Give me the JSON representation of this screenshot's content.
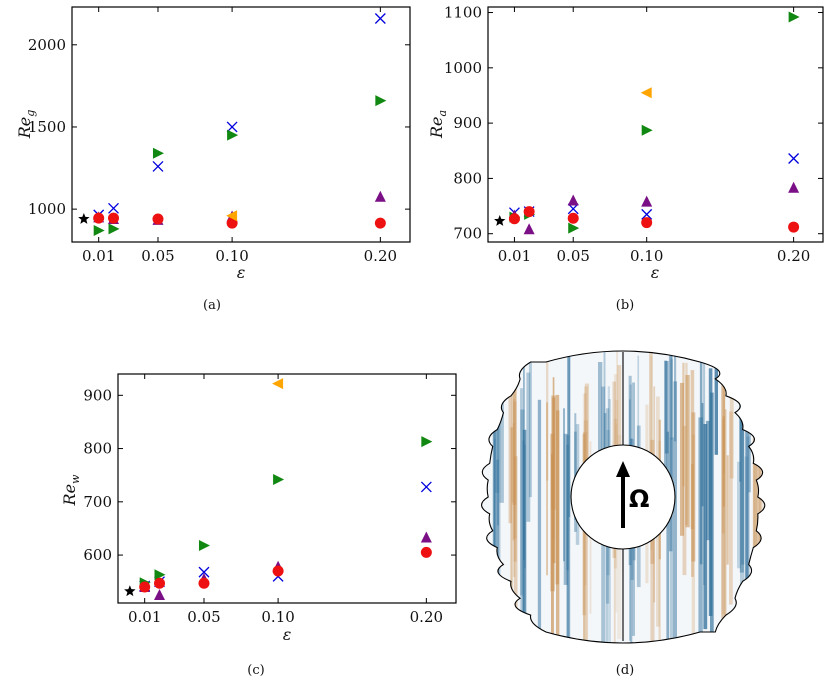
{
  "colors": {
    "star": "#000000",
    "cross": "#0000dd",
    "tri_right": "#118811",
    "tri_up": "#7a0f86",
    "circle": "#ee1111",
    "tri_left": "#ffa500",
    "blue_band": "#2f6f9a",
    "orange_band": "#c99152"
  },
  "chart_data": [
    {
      "id": "a",
      "type": "scatter",
      "caption": "(a)",
      "xlabel": "ε",
      "ylabel_base": "Re",
      "ylabel_sub": "g",
      "xlim": [
        -0.008,
        0.22
      ],
      "ylim": [
        800,
        2230
      ],
      "xticks": [
        {
          "value": 0.01,
          "label": "0.01"
        },
        {
          "value": 0.05,
          "label": "0.05"
        },
        {
          "value": 0.1,
          "label": "0.10"
        },
        {
          "value": 0.2,
          "label": "0.20"
        }
      ],
      "yticks": [
        {
          "value": 1000,
          "label": "1000"
        },
        {
          "value": 1500,
          "label": "1500"
        },
        {
          "value": 2000,
          "label": "2000"
        }
      ],
      "series": [
        {
          "marker": "star",
          "points": [
            [
              0.0,
              940
            ]
          ]
        },
        {
          "marker": "cross",
          "points": [
            [
              0.01,
              965
            ],
            [
              0.02,
              1005
            ],
            [
              0.05,
              1260
            ],
            [
              0.1,
              1500
            ],
            [
              0.2,
              2160
            ]
          ]
        },
        {
          "marker": "tri_right",
          "points": [
            [
              0.01,
              870
            ],
            [
              0.02,
              880
            ],
            [
              0.05,
              1340
            ],
            [
              0.1,
              1450
            ],
            [
              0.2,
              1660
            ]
          ]
        },
        {
          "marker": "tri_up",
          "points": [
            [
              0.01,
              950
            ],
            [
              0.02,
              940
            ],
            [
              0.05,
              935
            ],
            [
              0.1,
              955
            ],
            [
              0.2,
              1075
            ]
          ]
        },
        {
          "marker": "circle",
          "points": [
            [
              0.01,
              945
            ],
            [
              0.02,
              945
            ],
            [
              0.05,
              940
            ],
            [
              0.1,
              915
            ],
            [
              0.2,
              915
            ]
          ]
        },
        {
          "marker": "tri_left",
          "points": [
            [
              0.1,
              960
            ]
          ]
        }
      ]
    },
    {
      "id": "b",
      "type": "scatter",
      "caption": "(b)",
      "xlabel": "ε",
      "ylabel_base": "Re",
      "ylabel_sub": "a",
      "xlim": [
        -0.008,
        0.22
      ],
      "ylim": [
        685,
        1110
      ],
      "xticks": [
        {
          "value": 0.01,
          "label": "0.01"
        },
        {
          "value": 0.05,
          "label": "0.05"
        },
        {
          "value": 0.1,
          "label": "0.10"
        },
        {
          "value": 0.2,
          "label": "0.20"
        }
      ],
      "yticks": [
        {
          "value": 700,
          "label": "700"
        },
        {
          "value": 800,
          "label": "800"
        },
        {
          "value": 900,
          "label": "900"
        },
        {
          "value": 1000,
          "label": "1000"
        },
        {
          "value": 1100,
          "label": "1100"
        }
      ],
      "series": [
        {
          "marker": "star",
          "points": [
            [
              0.0,
              723
            ]
          ]
        },
        {
          "marker": "cross",
          "points": [
            [
              0.01,
              738
            ],
            [
              0.02,
              740
            ],
            [
              0.05,
              745
            ],
            [
              0.1,
              735
            ],
            [
              0.2,
              836
            ]
          ]
        },
        {
          "marker": "tri_right",
          "points": [
            [
              0.01,
              730
            ],
            [
              0.02,
              735
            ],
            [
              0.05,
              710
            ],
            [
              0.1,
              887
            ],
            [
              0.2,
              1092
            ]
          ]
        },
        {
          "marker": "tri_up",
          "points": [
            [
              0.01,
              733
            ],
            [
              0.02,
              708
            ],
            [
              0.05,
              760
            ],
            [
              0.1,
              758
            ],
            [
              0.2,
              783
            ]
          ]
        },
        {
          "marker": "circle",
          "points": [
            [
              0.01,
              727
            ],
            [
              0.02,
              740
            ],
            [
              0.05,
              728
            ],
            [
              0.1,
              720
            ],
            [
              0.2,
              712
            ]
          ]
        },
        {
          "marker": "tri_left",
          "points": [
            [
              0.1,
              955
            ]
          ]
        }
      ]
    },
    {
      "id": "c",
      "type": "scatter",
      "caption": "(c)",
      "xlabel": "ε",
      "ylabel_base": "Re",
      "ylabel_sub": "w",
      "xlim": [
        -0.008,
        0.22
      ],
      "ylim": [
        510,
        940
      ],
      "xticks": [
        {
          "value": 0.01,
          "label": "0.01"
        },
        {
          "value": 0.05,
          "label": "0.05"
        },
        {
          "value": 0.1,
          "label": "0.10"
        },
        {
          "value": 0.2,
          "label": "0.20"
        }
      ],
      "yticks": [
        {
          "value": 600,
          "label": "600"
        },
        {
          "value": 700,
          "label": "700"
        },
        {
          "value": 800,
          "label": "800"
        },
        {
          "value": 900,
          "label": "900"
        }
      ],
      "series": [
        {
          "marker": "star",
          "points": [
            [
              0.0,
              532
            ]
          ]
        },
        {
          "marker": "cross",
          "points": [
            [
              0.01,
              542
            ],
            [
              0.02,
              550
            ],
            [
              0.05,
              568
            ],
            [
              0.1,
              560
            ],
            [
              0.2,
              728
            ]
          ]
        },
        {
          "marker": "tri_right",
          "points": [
            [
              0.01,
              548
            ],
            [
              0.02,
              563
            ],
            [
              0.05,
              618
            ],
            [
              0.1,
              742
            ],
            [
              0.2,
              813
            ]
          ]
        },
        {
          "marker": "tri_up",
          "points": [
            [
              0.01,
              540
            ],
            [
              0.02,
              525
            ],
            [
              0.05,
              555
            ],
            [
              0.1,
              578
            ],
            [
              0.2,
              633
            ]
          ]
        },
        {
          "marker": "circle",
          "points": [
            [
              0.01,
              540
            ],
            [
              0.02,
              547
            ],
            [
              0.05,
              547
            ],
            [
              0.1,
              570
            ],
            [
              0.2,
              605
            ]
          ]
        },
        {
          "marker": "tri_left",
          "points": [
            [
              0.1,
              922
            ]
          ]
        }
      ]
    }
  ],
  "diagram_d": {
    "caption": "(d)",
    "arrow_label": "Ω"
  }
}
